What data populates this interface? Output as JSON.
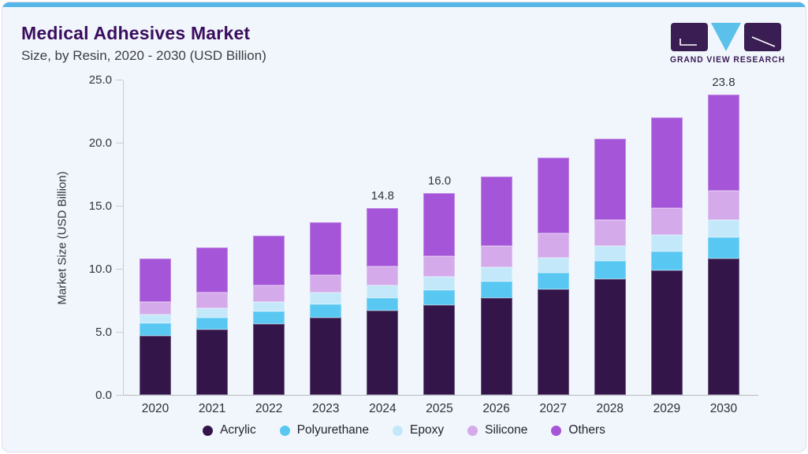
{
  "page": {
    "title": "Medical Adhesives Market",
    "subtitle": "Size, by Resin, 2020 - 2030 (USD Billion)"
  },
  "logo": {
    "text": "GRAND VIEW RESEARCH",
    "dark_color": "#3a1d52",
    "blue_color": "#5bc0ea"
  },
  "theme": {
    "card_background": "#f0f6fb",
    "accent_bar": "#55b7e8",
    "title_color": "#3b0d5e",
    "axis_color": "#c8ccd4",
    "text_color": "#33343c"
  },
  "chart_data": {
    "type": "bar",
    "stacked": true,
    "title": "Medical Adhesives Market Size, by Resin, 2020 - 2030 (USD Billion)",
    "xlabel": "",
    "ylabel": "Market Size (USD Billion)",
    "ylim": [
      0,
      25
    ],
    "yticks": [
      "0.0",
      "5.0",
      "10.0",
      "15.0",
      "20.0",
      "25.0"
    ],
    "grid": false,
    "legend_position": "bottom",
    "categories": [
      "2020",
      "2021",
      "2022",
      "2023",
      "2024",
      "2025",
      "2026",
      "2027",
      "2028",
      "2029",
      "2030"
    ],
    "series": [
      {
        "name": "Acrylic",
        "color": "#33154a",
        "values": [
          4.7,
          5.2,
          5.6,
          6.1,
          6.7,
          7.1,
          7.7,
          8.4,
          9.2,
          9.9,
          10.8
        ]
      },
      {
        "name": "Polyurethane",
        "color": "#58c7f2",
        "values": [
          1.0,
          0.9,
          1.0,
          1.1,
          1.0,
          1.2,
          1.3,
          1.3,
          1.4,
          1.5,
          1.7
        ]
      },
      {
        "name": "Epoxy",
        "color": "#c3e8fa",
        "values": [
          0.7,
          0.8,
          0.8,
          0.9,
          1.0,
          1.1,
          1.1,
          1.2,
          1.2,
          1.3,
          1.4
        ]
      },
      {
        "name": "Silicone",
        "color": "#d4aaea",
        "values": [
          1.0,
          1.2,
          1.3,
          1.4,
          1.5,
          1.6,
          1.7,
          1.9,
          2.1,
          2.1,
          2.3
        ]
      },
      {
        "name": "Others",
        "color": "#a556d8",
        "values": [
          3.4,
          3.6,
          3.9,
          4.2,
          4.6,
          5.0,
          5.5,
          6.0,
          6.4,
          7.2,
          7.6
        ]
      }
    ],
    "totals": [
      10.8,
      11.7,
      12.6,
      13.7,
      14.8,
      16.0,
      17.3,
      18.8,
      20.3,
      22.0,
      23.8
    ],
    "total_labels": {
      "2024": "14.8",
      "2025": "16.0",
      "2030": "23.8"
    }
  }
}
